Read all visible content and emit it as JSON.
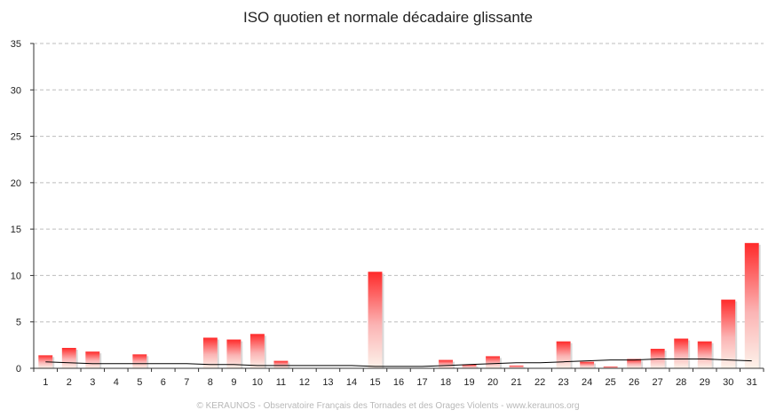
{
  "chart_data": {
    "type": "bar",
    "title": "ISO quotien et normale décadaire glissante",
    "xlabel": "",
    "ylabel": "",
    "ylim": [
      0,
      35
    ],
    "yticks": [
      0,
      5,
      10,
      15,
      20,
      25,
      30,
      35
    ],
    "grid": true,
    "categories": [
      "1",
      "2",
      "3",
      "4",
      "5",
      "6",
      "7",
      "8",
      "9",
      "10",
      "11",
      "12",
      "13",
      "14",
      "15",
      "16",
      "17",
      "18",
      "19",
      "20",
      "21",
      "22",
      "23",
      "24",
      "25",
      "26",
      "27",
      "28",
      "29",
      "30",
      "31"
    ],
    "series": [
      {
        "type": "bar",
        "values": [
          1.4,
          2.2,
          1.8,
          0.0,
          1.5,
          0.0,
          0.0,
          3.3,
          3.1,
          3.7,
          0.8,
          0.0,
          0.0,
          0.0,
          10.4,
          0.0,
          0.0,
          0.9,
          0.4,
          1.3,
          0.3,
          0.0,
          2.9,
          0.7,
          0.2,
          1.0,
          2.1,
          3.2,
          2.9,
          7.4,
          13.5
        ]
      },
      {
        "type": "line",
        "values": [
          0.7,
          0.6,
          0.5,
          0.5,
          0.5,
          0.5,
          0.5,
          0.4,
          0.4,
          0.3,
          0.3,
          0.3,
          0.3,
          0.3,
          0.2,
          0.2,
          0.2,
          0.3,
          0.4,
          0.5,
          0.6,
          0.6,
          0.7,
          0.8,
          0.9,
          0.9,
          1.0,
          1.0,
          1.0,
          0.9,
          0.8
        ]
      }
    ],
    "colors": {
      "bar_top": "#ff2a2a",
      "bar_bottom": "#fdf2ea",
      "line": "#000000",
      "grid": "#bdbdbd",
      "axis": "#333333"
    }
  },
  "footer": "© KERAUNOS - Observatoire Français des Tornades et des Orages Violents - www.keraunos.org"
}
